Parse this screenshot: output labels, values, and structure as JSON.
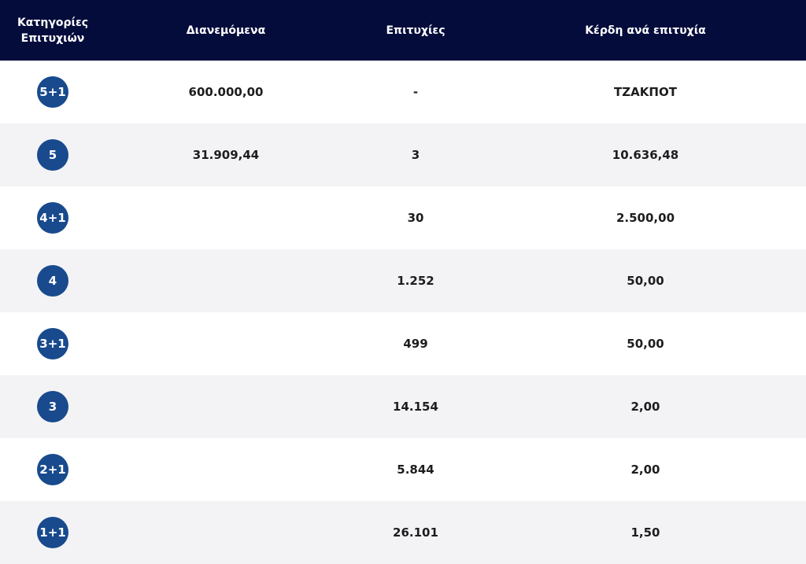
{
  "header": {
    "category": "Κατηγορίες Επιτυχιών",
    "distributed": "Διανεμόμενα",
    "winners": "Επιτυχίες",
    "prize": "Κέρδη ανά επιτυχία"
  },
  "table": {
    "rows": [
      {
        "category": "5+1",
        "distributed": "600.000,00",
        "winners": "-",
        "prize": "ΤΖΑΚΠΟΤ"
      },
      {
        "category": "5",
        "distributed": "31.909,44",
        "winners": "3",
        "prize": "10.636,48"
      },
      {
        "category": "4+1",
        "winners": "30",
        "prize": "2.500,00"
      },
      {
        "category": "4",
        "winners": "1.252",
        "prize": "50,00"
      },
      {
        "category": "3+1",
        "winners": "499",
        "prize": "50,00"
      },
      {
        "category": "3",
        "winners": "14.154",
        "prize": "2,00"
      },
      {
        "category": "2+1",
        "winners": "5.844",
        "prize": "2,00"
      },
      {
        "category": "1+1",
        "winners": "26.101",
        "prize": "1,50"
      }
    ]
  }
}
